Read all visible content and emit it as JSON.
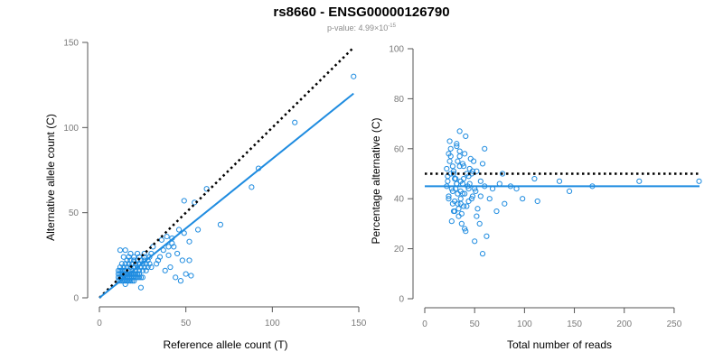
{
  "colors": {
    "points": "#1f8ce0",
    "fit": "#1f8ce0",
    "reference": "#000000"
  },
  "header": {
    "title": "rs8660 - ENSG00000126790",
    "pvalue_prefix": "p-value: 4.99×10",
    "pvalue_exp": "-15"
  },
  "chart_data": [
    {
      "type": "scatter",
      "xlabel": "Reference allele count (T)",
      "ylabel": "Alternative allele count (C)",
      "xlim": [
        0,
        150
      ],
      "ylim": [
        0,
        150
      ],
      "xticks": [
        "0",
        "50",
        "100",
        "150"
      ],
      "yticks": [
        "0",
        "50",
        "100",
        "150"
      ],
      "grid": false,
      "reference_line": {
        "style": "dotted",
        "points": [
          [
            0,
            0
          ],
          [
            147,
            147
          ]
        ]
      },
      "fit_line": {
        "style": "solid",
        "points": [
          [
            0,
            0
          ],
          [
            147,
            120
          ]
        ]
      },
      "x": [
        11,
        12,
        13,
        14,
        15,
        16,
        17,
        18,
        19,
        20,
        11,
        12,
        13,
        14,
        15,
        16,
        17,
        18,
        19,
        20,
        21,
        22,
        23,
        24,
        25,
        11,
        12,
        13,
        14,
        15,
        16,
        17,
        18,
        19,
        20,
        21,
        22,
        23,
        11,
        12,
        13,
        14,
        15,
        17,
        19,
        21,
        23,
        25,
        27,
        12,
        14,
        16,
        18,
        20,
        22,
        24,
        26,
        28,
        30,
        13,
        15,
        17,
        19,
        21,
        23,
        25,
        27,
        29,
        16,
        18,
        20,
        22,
        24,
        26,
        28,
        14,
        17,
        20,
        23,
        26,
        29,
        18,
        22,
        26,
        30,
        12,
        15,
        33,
        35,
        37,
        40,
        42,
        45,
        48,
        38,
        41,
        44,
        47,
        50,
        36,
        39,
        43,
        46,
        49,
        52,
        34,
        40,
        52,
        53,
        55,
        49,
        57,
        62,
        70,
        88,
        92,
        113,
        147,
        15,
        24,
        31,
        42
      ],
      "y": [
        10,
        10,
        10,
        10,
        10,
        10,
        10,
        10,
        10,
        10,
        12,
        12,
        12,
        12,
        12,
        12,
        12,
        12,
        12,
        12,
        12,
        12,
        12,
        12,
        12,
        14,
        14,
        14,
        14,
        14,
        14,
        14,
        14,
        14,
        14,
        14,
        14,
        14,
        16,
        16,
        16,
        16,
        16,
        16,
        16,
        16,
        16,
        16,
        16,
        18,
        18,
        18,
        18,
        18,
        18,
        18,
        18,
        18,
        18,
        20,
        20,
        20,
        20,
        20,
        20,
        20,
        20,
        20,
        22,
        22,
        22,
        22,
        22,
        22,
        22,
        24,
        24,
        24,
        24,
        24,
        24,
        26,
        26,
        26,
        26,
        28,
        28,
        20,
        24,
        28,
        30,
        32,
        26,
        22,
        16,
        18,
        12,
        10,
        14,
        34,
        36,
        30,
        40,
        38,
        33,
        22,
        25,
        22,
        13,
        56,
        57,
        40,
        64,
        43,
        65,
        76,
        103,
        130,
        8,
        6,
        30,
        35
      ]
    },
    {
      "type": "scatter",
      "xlabel": "Total number of reads",
      "ylabel": "Percentage alternative (C)",
      "xlim": [
        0,
        270
      ],
      "ylim": [
        0,
        100
      ],
      "xticks": [
        "0",
        "50",
        "100",
        "150",
        "200",
        "250"
      ],
      "yticks": [
        "0",
        "20",
        "40",
        "60",
        "80",
        "100"
      ],
      "grid": false,
      "reference_line": {
        "style": "dotted",
        "y": 50
      },
      "fit_line": {
        "style": "solid",
        "y": 45
      },
      "x": [
        22,
        23,
        24,
        25,
        26,
        27,
        28,
        29,
        30,
        31,
        32,
        33,
        34,
        35,
        36,
        37,
        38,
        39,
        40,
        22,
        24,
        26,
        28,
        30,
        32,
        34,
        36,
        38,
        40,
        42,
        44,
        46,
        48,
        25,
        27,
        29,
        31,
        33,
        35,
        37,
        39,
        41,
        43,
        45,
        47,
        49,
        51,
        23,
        26,
        29,
        32,
        35,
        38,
        41,
        44,
        47,
        50,
        53,
        56,
        24,
        28,
        32,
        36,
        40,
        44,
        48,
        52,
        56,
        60,
        30,
        33,
        36,
        39,
        42,
        45,
        50,
        55,
        58,
        62,
        65,
        68,
        72,
        75,
        78,
        80,
        86,
        92,
        98,
        110,
        113,
        135,
        145,
        168,
        215,
        275,
        58,
        60,
        35,
        52
      ],
      "y": [
        52,
        47,
        41,
        55,
        60,
        44,
        38,
        50,
        35,
        48,
        62,
        42,
        33,
        57,
        40,
        30,
        46,
        53,
        28,
        45,
        58,
        50,
        43,
        39,
        61,
        36,
        47,
        54,
        42,
        37,
        49,
        56,
        41,
        63,
        31,
        51,
        44,
        38,
        59,
        34,
        48,
        27,
        45,
        52,
        40,
        55,
        43,
        49,
        57,
        35,
        46,
        53,
        42,
        65,
        39,
        50,
        44,
        36,
        47,
        40,
        53,
        46,
        38,
        58,
        44,
        51,
        33,
        41,
        60,
        48,
        55,
        43,
        37,
        50,
        46,
        23,
        30,
        18,
        25,
        40,
        44,
        35,
        46,
        50,
        38,
        45,
        44,
        40,
        48,
        39,
        47,
        43,
        45,
        47,
        47,
        54,
        45,
        67,
        51
      ]
    }
  ]
}
